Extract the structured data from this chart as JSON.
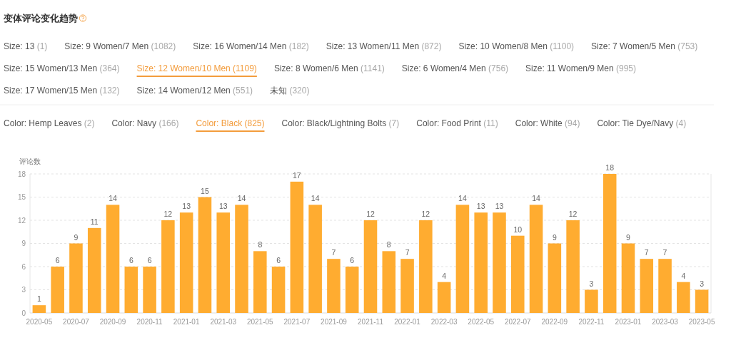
{
  "chart_data": [
    {
      "type": "other",
      "title": "变体评论变化趋势",
      "annotations": [
        "Size: 13 (1)",
        "Size: 9 Women/7 Men (1082)",
        "Size: 16 Women/14 Men (182)",
        "Size: 13 Women/11 Men (872)",
        "Size: 10 Women/8 Men (1100)",
        "Size: 7 Women/5 Men (753)",
        "Size: 15 Women/13 Men (364)",
        "Size: 12 Women/10 Men (1109)",
        "Size: 8 Women/6 Men (1141)",
        "Size: 6 Women/4 Men (756)",
        "Size: 11 Women/9 Men (995)",
        "Size: 17 Women/15 Men (132)",
        "Size: 14 Women/12 Men (551)",
        "未知 (320)"
      ]
    },
    {
      "type": "other",
      "annotations": [
        "Color: Hemp Leaves (2)",
        "Color: Navy (166)",
        "Color: Black (825)",
        "Color: Black/Lightning Bolts (7)",
        "Color: Food Print (11)",
        "Color: White (94)",
        "Color: Tie Dye/Navy (4)"
      ]
    },
    {
      "type": "bar",
      "ylabel": "评论数",
      "categories": [
        "2020-05",
        null,
        "2020-07",
        null,
        "2020-09",
        null,
        "2020-11",
        null,
        "2021-01",
        null,
        "2021-03",
        null,
        "2021-05",
        null,
        "2021-07",
        null,
        "2021-09",
        null,
        "2021-11",
        null,
        "2022-01",
        null,
        "2022-03",
        null,
        "2022-05",
        null,
        "2022-07",
        null,
        "2022-09",
        null,
        "2022-11",
        null,
        "2023-01",
        null,
        "2023-03",
        null,
        "2023-05"
      ],
      "values": [
        1,
        6,
        9,
        11,
        14,
        6,
        6,
        12,
        13,
        15,
        13,
        14,
        8,
        6,
        17,
        14,
        7,
        6,
        12,
        8,
        7,
        12,
        4,
        14,
        13,
        13,
        10,
        14,
        9,
        12,
        3,
        18,
        9,
        7,
        7,
        4,
        3
      ],
      "color": "#ffac30",
      "ylim": [
        0,
        18
      ],
      "yticks": [
        0,
        3,
        6,
        9,
        12,
        15,
        18
      ],
      "grid": "y",
      "data_labels": true
    }
  ]
}
